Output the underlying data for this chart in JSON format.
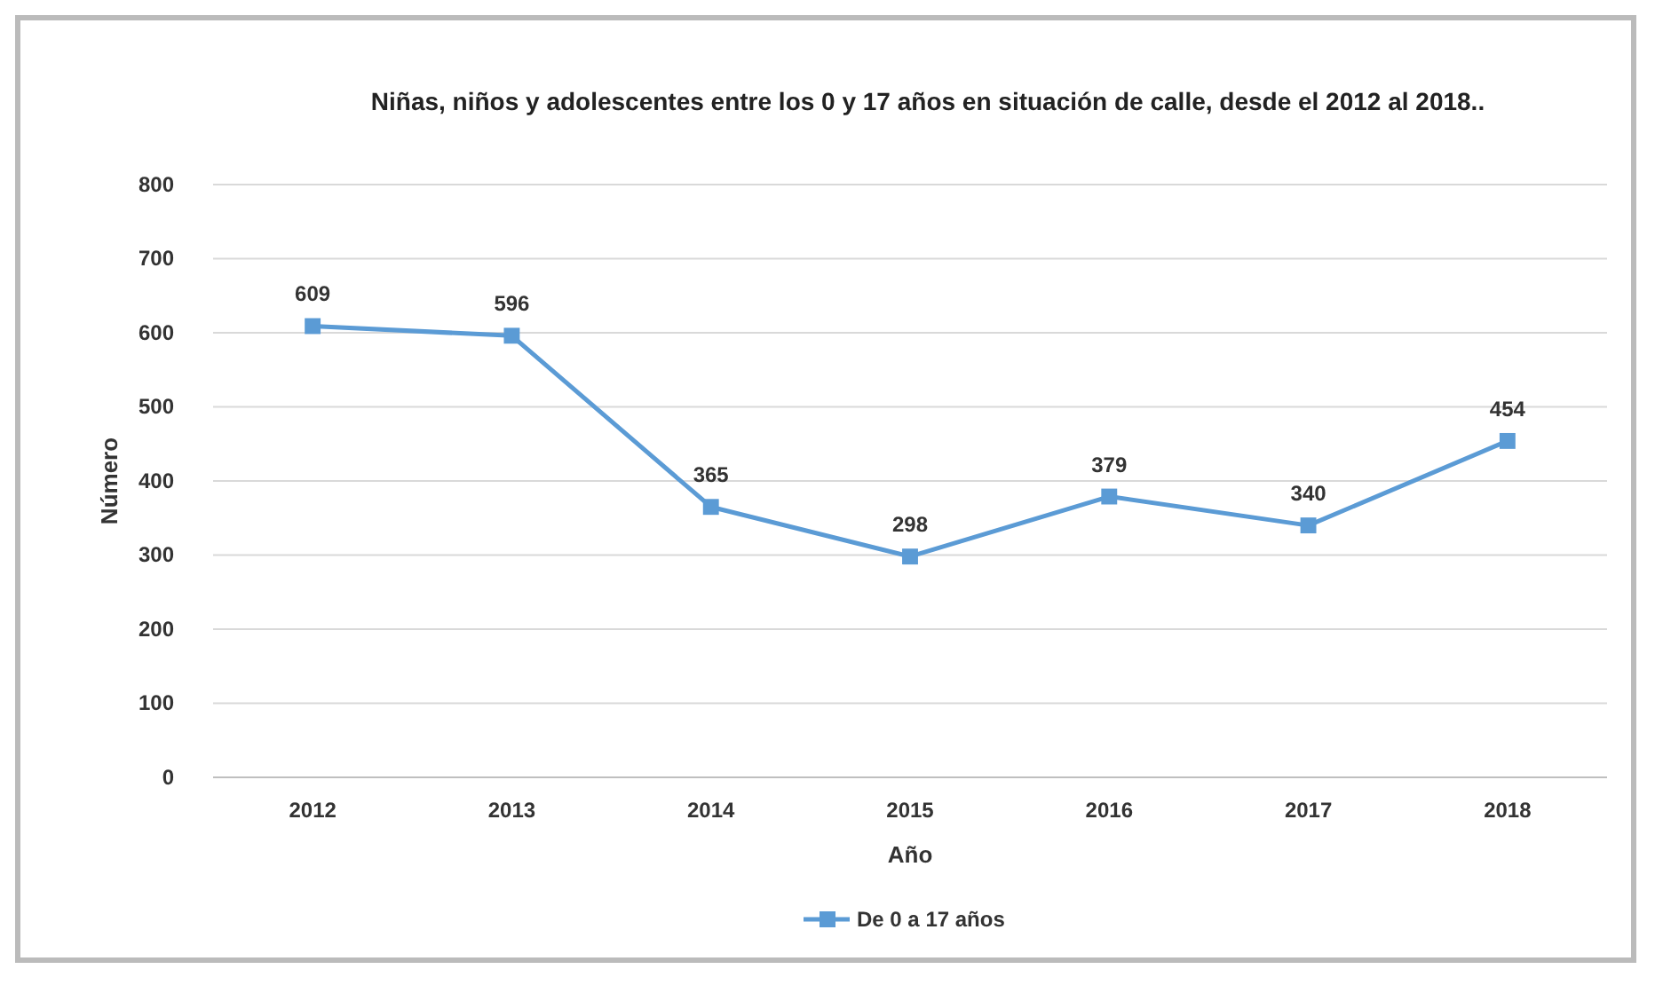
{
  "chart_data": {
    "type": "line",
    "title": "Niñas, niños y adolescentes entre los 0 y 17 años en situación de calle, desde el 2012 al 2018..",
    "xlabel": "Año",
    "ylabel": "Número",
    "categories": [
      "2012",
      "2013",
      "2014",
      "2015",
      "2016",
      "2017",
      "2018"
    ],
    "series": [
      {
        "name": "De 0 a 17 años",
        "color": "#5b9bd5",
        "values": [
          609,
          596,
          365,
          298,
          379,
          340,
          454
        ]
      }
    ],
    "ylim": [
      0,
      800
    ],
    "yticks": [
      0,
      100,
      200,
      300,
      400,
      500,
      600,
      700,
      800
    ],
    "grid": "y",
    "legend": "bottom",
    "marker": "square",
    "line_style": "solid",
    "data_labels": true
  }
}
